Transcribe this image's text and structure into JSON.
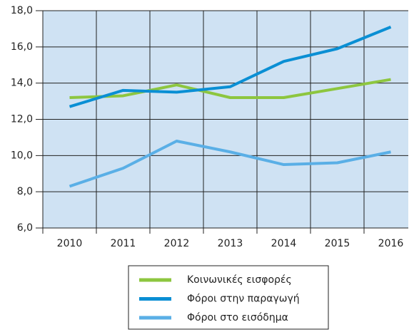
{
  "chart_data": {
    "type": "line",
    "categories": [
      "2010",
      "2011",
      "2012",
      "2013",
      "2014",
      "2015",
      "2016"
    ],
    "series": [
      {
        "name": "Κοινωνικές εισφορές",
        "color": "#8dc63f",
        "values": [
          13.2,
          13.3,
          13.9,
          13.2,
          13.2,
          13.7,
          14.2
        ]
      },
      {
        "name": "Φόροι στην παραγωγή",
        "color": "#0a8fd4",
        "values": [
          12.7,
          13.6,
          13.5,
          13.8,
          15.2,
          15.9,
          17.1
        ]
      },
      {
        "name": "Φόροι στο εισόδημα",
        "color": "#5aafe6",
        "values": [
          8.3,
          9.3,
          10.8,
          10.2,
          9.5,
          9.6,
          10.2
        ]
      }
    ],
    "ylim": [
      6,
      18
    ],
    "yticks": [
      {
        "value": 6,
        "label": "6,0"
      },
      {
        "value": 8,
        "label": "8,0"
      },
      {
        "value": 10,
        "label": "10,0"
      },
      {
        "value": 12,
        "label": "12,0"
      },
      {
        "value": 14,
        "label": "14,0"
      },
      {
        "value": 16,
        "label": "16,0"
      },
      {
        "value": 18,
        "label": "18,0"
      }
    ],
    "grid": true,
    "legend": "bottom"
  }
}
